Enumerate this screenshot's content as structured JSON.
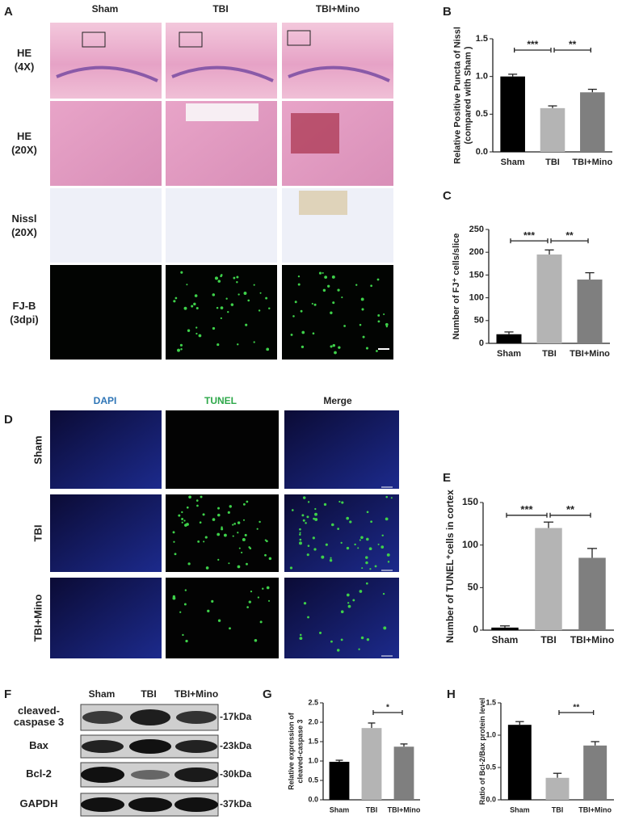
{
  "panel_a": {
    "label": "A",
    "columns": [
      "Sham",
      "TBI",
      "TBI+Mino"
    ],
    "rows": [
      [
        "HE",
        "(4X)"
      ],
      [
        "HE",
        "(20X)"
      ],
      [
        "Nissl",
        "(20X)"
      ],
      [
        "FJ-B",
        "(3dpi)"
      ]
    ]
  },
  "panel_d": {
    "label": "D",
    "columns": [
      "DAPI",
      "TUNEL",
      "Merge"
    ],
    "rows": [
      "Sham",
      "TBI",
      "TBI+Mino"
    ]
  },
  "panel_f": {
    "label": "F",
    "columns": [
      "Sham",
      "TBI",
      "TBI+Mino"
    ],
    "rows": [
      {
        "name": [
          "cleaved-",
          "caspase 3"
        ],
        "size": "-17kDa"
      },
      {
        "name": [
          "Bax"
        ],
        "size": "-23kDa"
      },
      {
        "name": [
          "Bcl-2"
        ],
        "size": "-30kDa"
      },
      {
        "name": [
          "GAPDH"
        ],
        "size": "-37kDa"
      }
    ]
  },
  "chart_data": [
    {
      "type": "bar",
      "panel": "B",
      "ylabel": [
        "Relative Positive Puncta of Nissl",
        "(compared with Sham )"
      ],
      "categories": [
        "Sham",
        "TBI",
        "TBI+Mino"
      ],
      "values": [
        1.0,
        0.58,
        0.79
      ],
      "errors": [
        0.03,
        0.03,
        0.04
      ],
      "colors": [
        "#000000",
        "#b4b4b4",
        "#7f7f7f"
      ],
      "ylim": [
        0,
        1.5
      ],
      "yticks": [
        {
          "value": 0,
          "label": "0.0"
        },
        0.5,
        {
          "value": 1,
          "label": "1.0"
        },
        1.5
      ],
      "annotations": [
        {
          "label": "***",
          "between": [
            "Sham",
            "TBI"
          ]
        },
        {
          "label": "**",
          "between": [
            "TBI",
            "TBI+Mino"
          ]
        }
      ]
    },
    {
      "type": "bar",
      "panel": "C",
      "ylabel": "Number of FJ⁺ cells/slice",
      "categories": [
        "Sham",
        "TBI",
        "TBI+Mino"
      ],
      "values": [
        20,
        195,
        140
      ],
      "errors": [
        5,
        10,
        15
      ],
      "colors": [
        "#000000",
        "#b4b4b4",
        "#7f7f7f"
      ],
      "ylim": [
        0,
        250
      ],
      "yticks": [
        0,
        50,
        100,
        150,
        200,
        250
      ],
      "annotations": [
        {
          "label": "***",
          "between": [
            "Sham",
            "TBI"
          ]
        },
        {
          "label": "**",
          "between": [
            "TBI",
            "TBI+Mino"
          ]
        }
      ]
    },
    {
      "type": "bar",
      "panel": "E",
      "ylabel": "Number of TUNEL⁺cells in cortex",
      "categories": [
        "Sham",
        "TBI",
        "TBI+Mino"
      ],
      "values": [
        3,
        120,
        85
      ],
      "errors": [
        2,
        7,
        11
      ],
      "colors": [
        "#000000",
        "#b4b4b4",
        "#7f7f7f"
      ],
      "ylim": [
        0,
        150
      ],
      "yticks": [
        0,
        50,
        100,
        150
      ],
      "annotations": [
        {
          "label": "***",
          "between": [
            "Sham",
            "TBI"
          ]
        },
        {
          "label": "**",
          "between": [
            "TBI",
            "TBI+Mino"
          ]
        }
      ]
    },
    {
      "type": "bar",
      "panel": "G",
      "ylabel": [
        "Relative expression of",
        "cleaved-caspase 3"
      ],
      "categories": [
        "Sham",
        "TBI",
        "TBI+Mino"
      ],
      "values": [
        0.98,
        1.85,
        1.37
      ],
      "errors": [
        0.04,
        0.13,
        0.07
      ],
      "colors": [
        "#000000",
        "#b4b4b4",
        "#7f7f7f"
      ],
      "ylim": [
        0,
        2.5
      ],
      "yticks": [
        {
          "value": 0,
          "label": "0.0"
        },
        0.5,
        {
          "value": 1,
          "label": "1.0"
        },
        1.5,
        {
          "value": 2,
          "label": "2.0"
        },
        2.5
      ],
      "annotations": [
        {
          "label": "*",
          "between": [
            "TBI",
            "TBI+Mino"
          ]
        }
      ]
    },
    {
      "type": "bar",
      "panel": "H",
      "ylabel": "Ratio of Bcl-2/Bax protein level",
      "categories": [
        "Sham",
        "TBI",
        "TBI+Mino"
      ],
      "values": [
        1.16,
        0.34,
        0.84
      ],
      "errors": [
        0.05,
        0.07,
        0.06
      ],
      "colors": [
        "#000000",
        "#b4b4b4",
        "#7f7f7f"
      ],
      "ylim": [
        0,
        1.5
      ],
      "yticks": [
        {
          "value": 0,
          "label": "0.0"
        },
        0.5,
        {
          "value": 1,
          "label": "1.0"
        },
        1.5
      ],
      "annotations": [
        {
          "label": "**",
          "between": [
            "TBI",
            "TBI+Mino"
          ]
        }
      ]
    }
  ]
}
